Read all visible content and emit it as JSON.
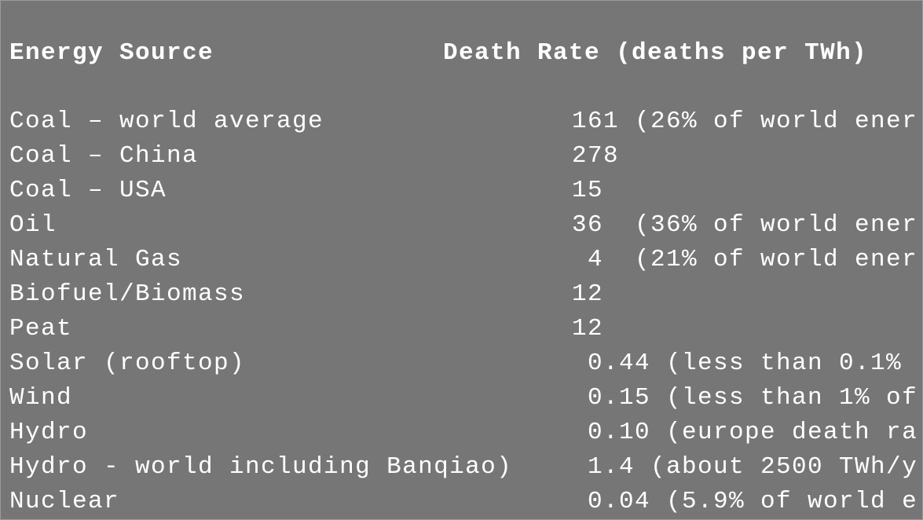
{
  "header": {
    "source_label": "Energy Source",
    "rate_label": "Death Rate (deaths per TWh)"
  },
  "rows": [
    {
      "source": "Coal – world average",
      "rate": "161 (26% of world ener"
    },
    {
      "source": "Coal – China",
      "rate": "278"
    },
    {
      "source": "Coal – USA",
      "rate": "15"
    },
    {
      "source": "Oil",
      "rate": "36  (36% of world ener"
    },
    {
      "source": "Natural Gas",
      "rate": " 4  (21% of world ener"
    },
    {
      "source": "Biofuel/Biomass",
      "rate": "12"
    },
    {
      "source": "Peat",
      "rate": "12"
    },
    {
      "source": "Solar (rooftop)",
      "rate": " 0.44 (less than 0.1% "
    },
    {
      "source": "Wind",
      "rate": " 0.15 (less than 1% of"
    },
    {
      "source": "Hydro",
      "rate": " 0.10 (europe death ra"
    },
    {
      "source": "Hydro - world including Banqiao)",
      "rate": " 1.4 (about 2500 TWh/y"
    },
    {
      "source": "Nuclear",
      "rate": " 0.04 (5.9% of world e"
    }
  ]
}
